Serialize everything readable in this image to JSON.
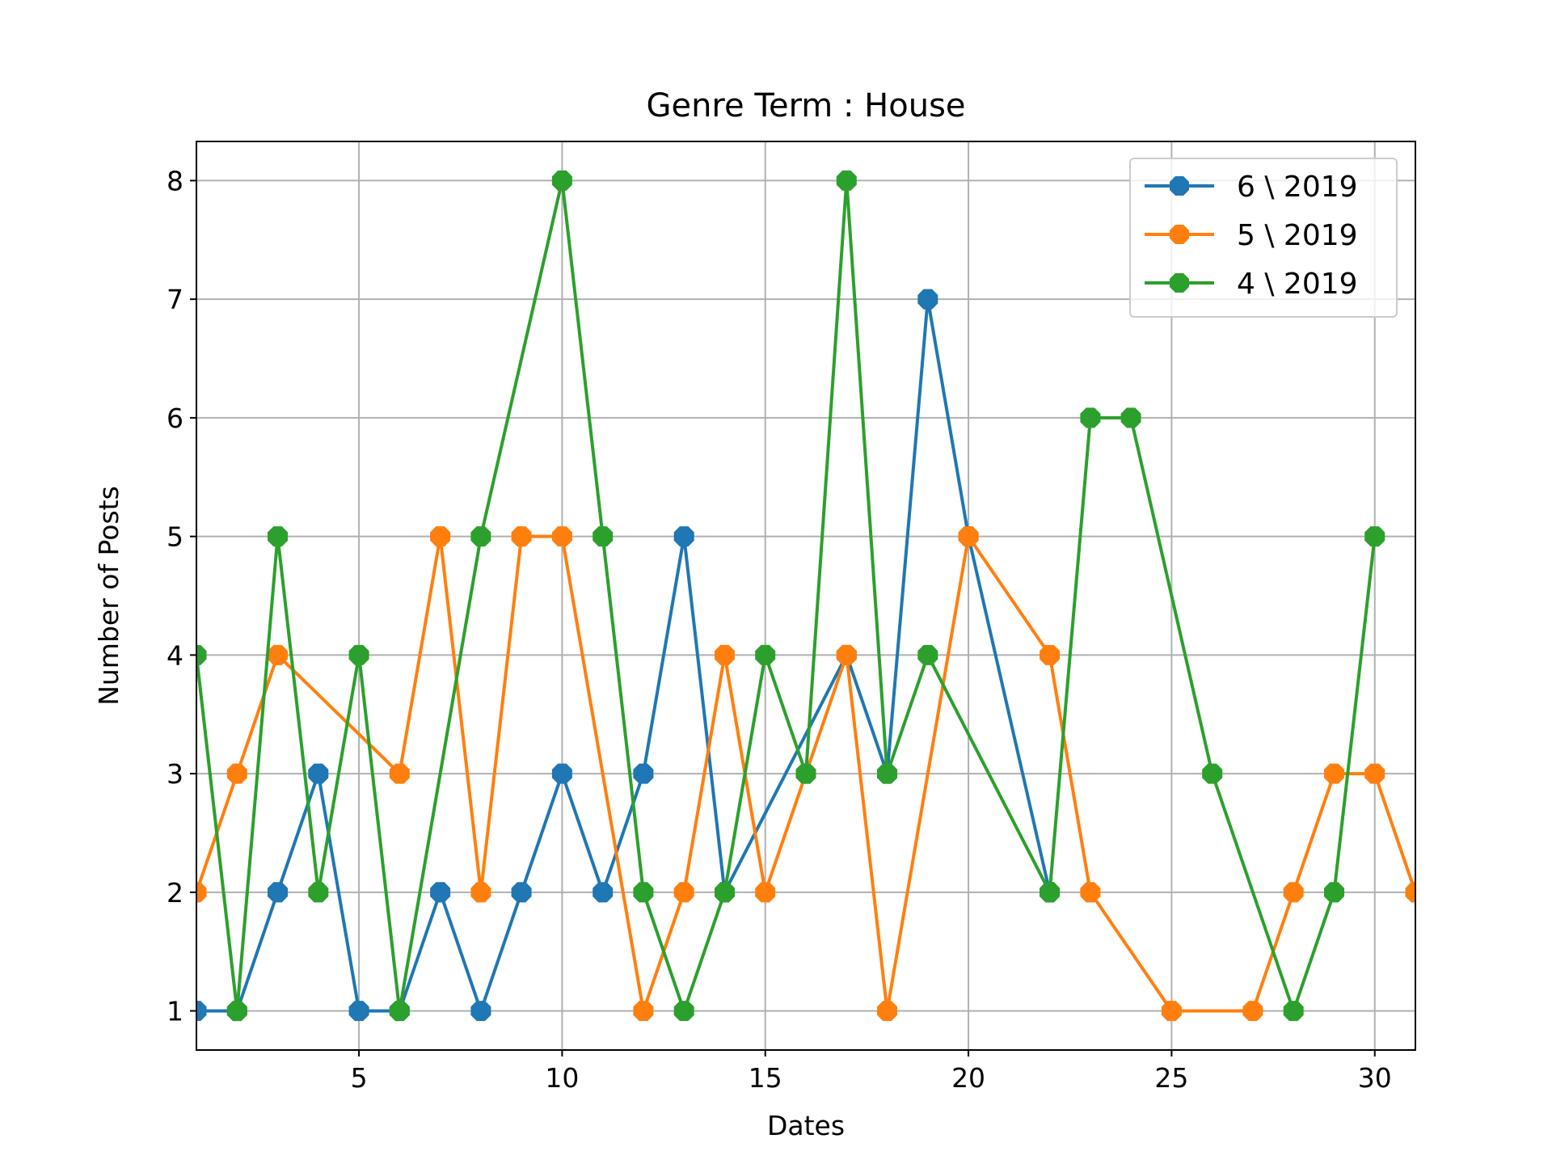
{
  "chart_data": {
    "type": "line",
    "title": "Genre Term : House",
    "xlabel": "Dates",
    "ylabel": "Number of Posts",
    "xlim": [
      1,
      31
    ],
    "ylim": [
      0.67,
      8.33
    ],
    "xticks": [
      5,
      10,
      15,
      20,
      25,
      30
    ],
    "yticks": [
      1,
      2,
      3,
      4,
      5,
      6,
      7,
      8
    ],
    "grid": true,
    "legend_position": "top-right",
    "marker": "octagon",
    "series": [
      {
        "name": "6 \\ 2019",
        "color": "#1f77b4",
        "x": [
          1,
          2,
          3,
          4,
          5,
          6,
          7,
          8,
          9,
          10,
          11,
          12,
          13,
          14,
          17,
          18,
          19,
          20,
          22
        ],
        "y": [
          1,
          1,
          2,
          3,
          1,
          1,
          2,
          1,
          2,
          3,
          2,
          3,
          5,
          2,
          4,
          3,
          7,
          5,
          2
        ]
      },
      {
        "name": "5 \\ 2019",
        "color": "#ff7f0e",
        "x": [
          1,
          2,
          3,
          6,
          7,
          8,
          9,
          10,
          12,
          13,
          14,
          15,
          16,
          17,
          18,
          20,
          22,
          23,
          25,
          27,
          28,
          29,
          30,
          31
        ],
        "y": [
          2,
          3,
          4,
          3,
          5,
          2,
          5,
          5,
          1,
          2,
          4,
          2,
          3,
          4,
          1,
          5,
          4,
          2,
          1,
          1,
          2,
          3,
          3,
          2
        ]
      },
      {
        "name": "4 \\ 2019",
        "color": "#2ca02c",
        "x": [
          1,
          2,
          3,
          4,
          5,
          6,
          8,
          10,
          11,
          12,
          13,
          14,
          15,
          16,
          17,
          18,
          19,
          22,
          23,
          24,
          26,
          28,
          29,
          30
        ],
        "y": [
          4,
          1,
          5,
          2,
          4,
          1,
          5,
          8,
          5,
          2,
          1,
          2,
          4,
          3,
          8,
          3,
          4,
          2,
          6,
          6,
          3,
          1,
          2,
          5
        ]
      }
    ]
  }
}
